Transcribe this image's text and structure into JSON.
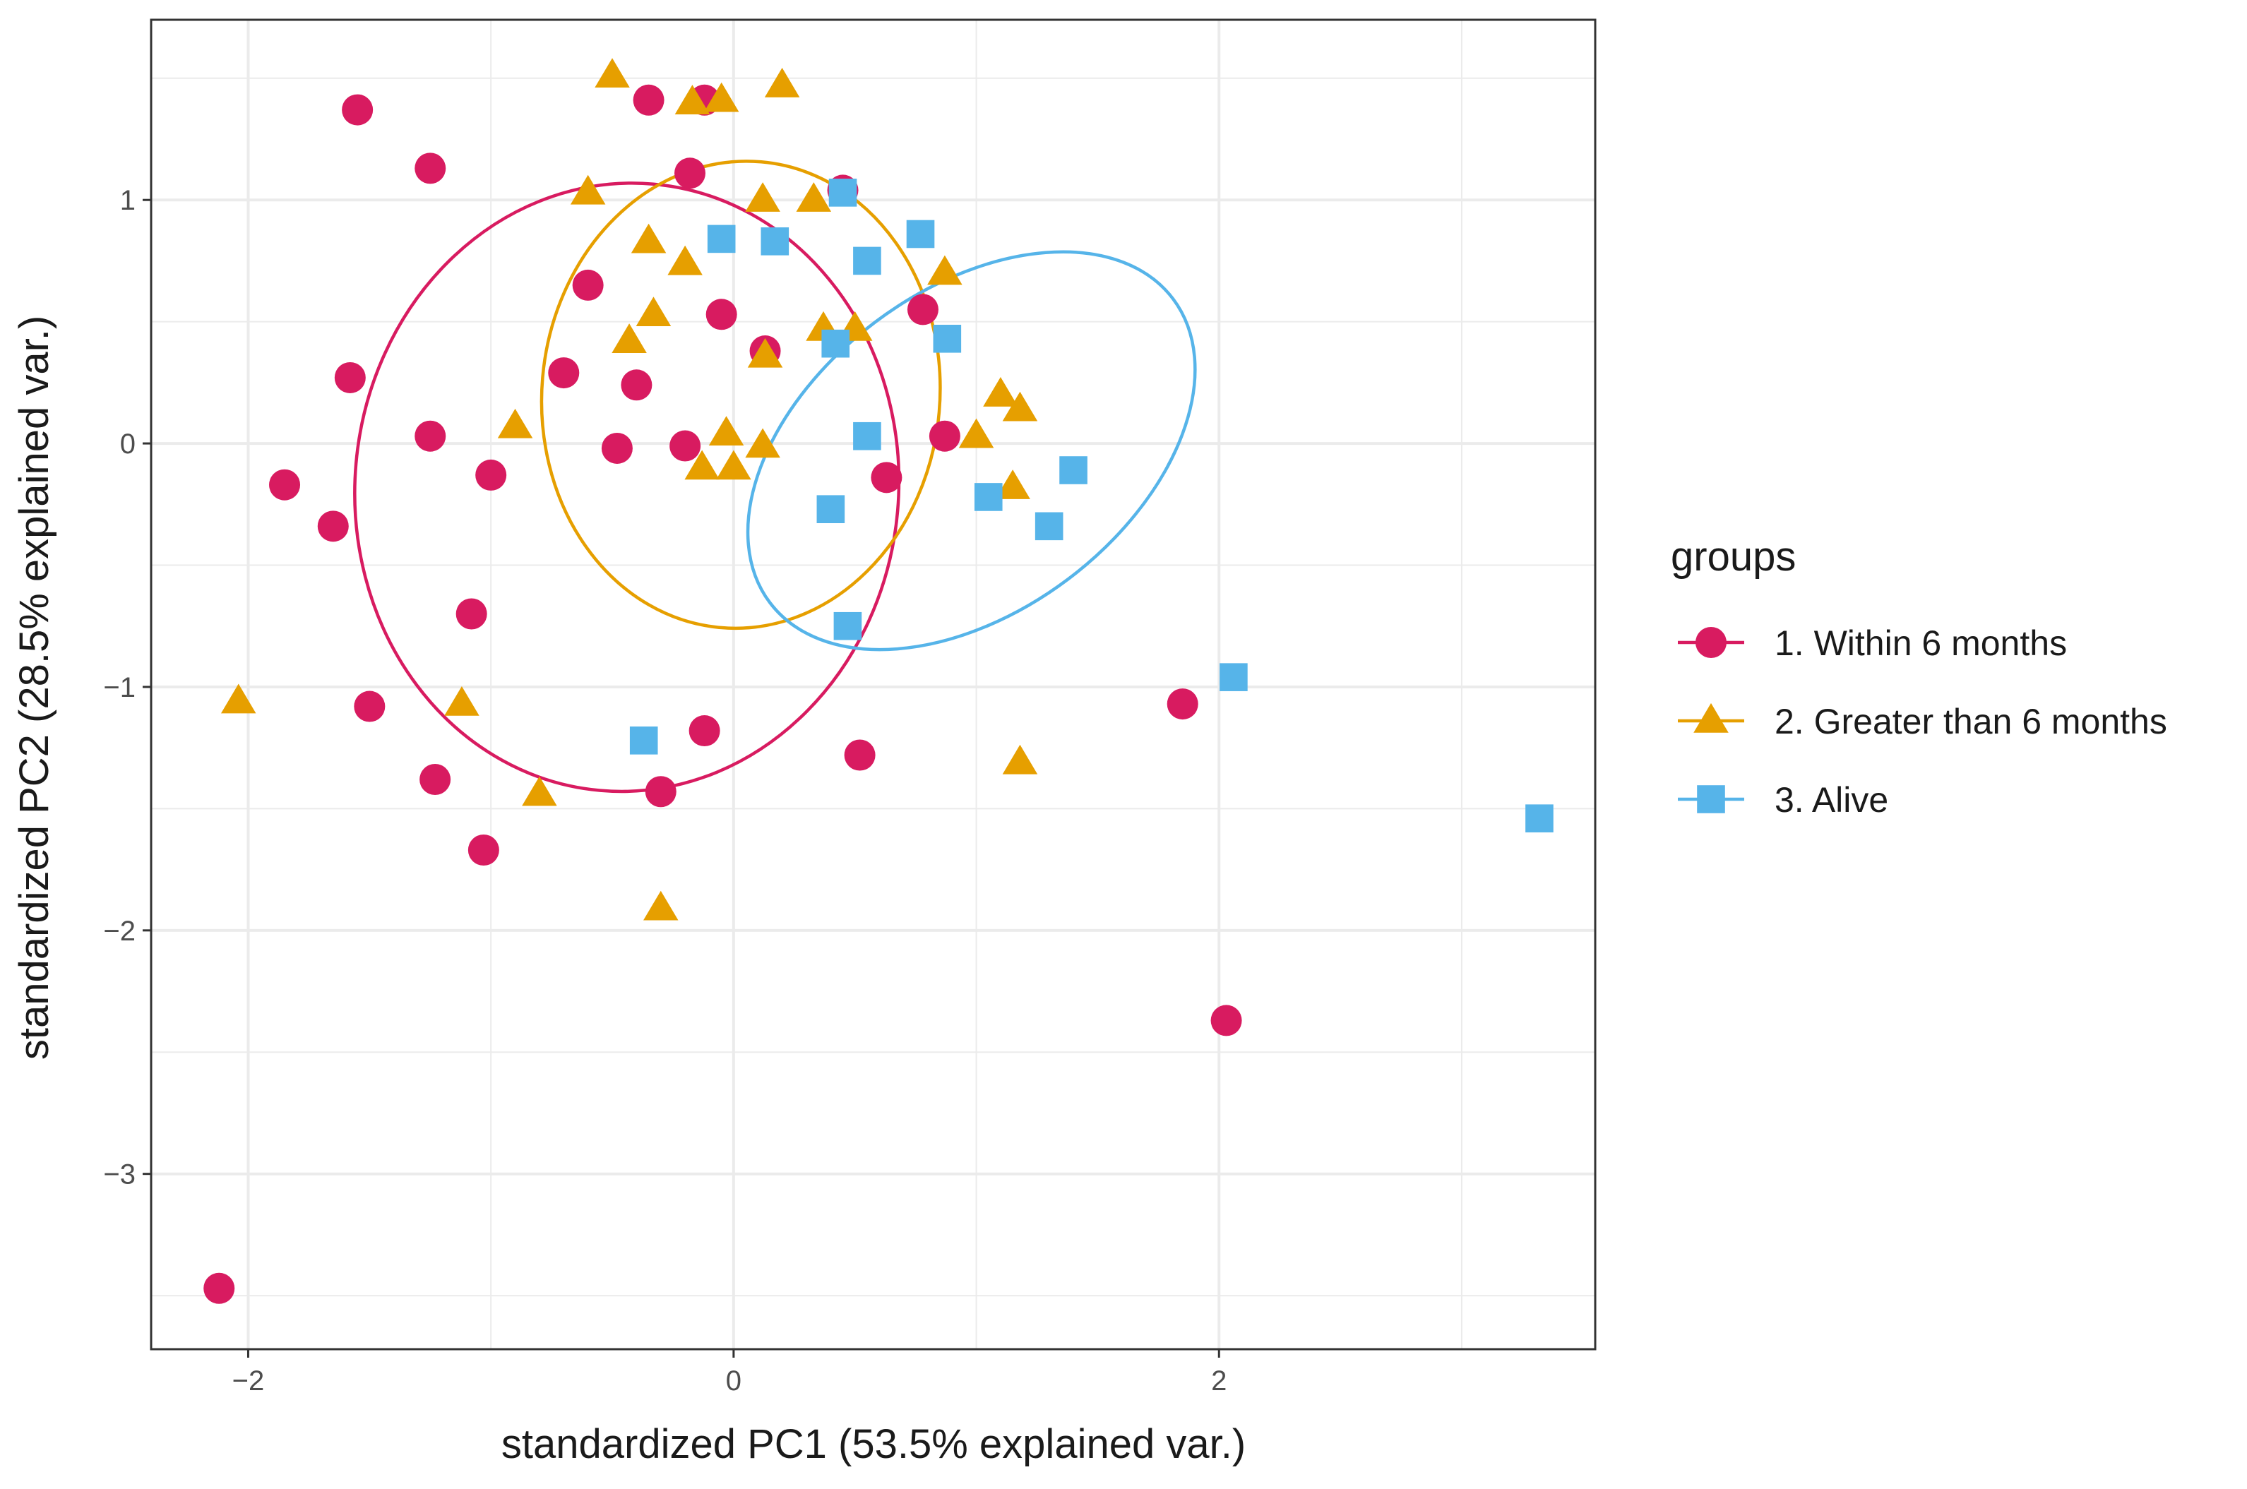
{
  "chart_data": {
    "type": "scatter",
    "title": "",
    "xlabel": "standardized PC1 (53.5% explained var.)",
    "ylabel": "standardized PC2 (28.5% explained var.)",
    "xlim": [
      -2.4,
      3.55
    ],
    "ylim": [
      -3.72,
      1.74
    ],
    "x_ticks": [
      -2,
      0,
      2
    ],
    "x_tick_labels": [
      "−2",
      "0",
      "2"
    ],
    "y_ticks": [
      -3,
      -2,
      -1,
      0,
      1
    ],
    "y_tick_labels": [
      "−3",
      "−2",
      "−1",
      "0",
      "1"
    ],
    "grid": true,
    "legend": {
      "title": "groups",
      "position": "right"
    },
    "series": [
      {
        "name": "1. Within 6 months",
        "marker": "circle",
        "color": "#D81B60",
        "x": [
          -1.55,
          -1.25,
          -0.35,
          -0.12,
          -0.18,
          0.45,
          -0.6,
          -0.05,
          0.78,
          0.13,
          -1.58,
          -0.7,
          -0.4,
          -1.25,
          -1.0,
          -0.48,
          -0.2,
          0.63,
          0.87,
          -1.85,
          -1.65,
          -1.08,
          -1.5,
          -0.12,
          0.52,
          -1.23,
          -0.3,
          -1.03,
          1.85,
          2.03,
          -2.12
        ],
        "y": [
          1.37,
          1.13,
          1.41,
          1.41,
          1.11,
          1.04,
          0.65,
          0.53,
          0.55,
          0.38,
          0.27,
          0.29,
          0.24,
          0.03,
          -0.13,
          -0.02,
          -0.01,
          -0.14,
          0.03,
          -0.17,
          -0.34,
          -0.7,
          -1.08,
          -1.18,
          -1.28,
          -1.38,
          -1.43,
          -1.67,
          -1.07,
          -2.37,
          -3.47
        ]
      },
      {
        "name": "2. Greater than 6 months",
        "marker": "triangle",
        "color": "#E69F00",
        "x": [
          -0.5,
          0.2,
          -0.17,
          -0.05,
          -0.6,
          0.12,
          0.33,
          -0.35,
          -0.2,
          0.87,
          -0.33,
          -0.43,
          0.37,
          0.5,
          0.13,
          -0.9,
          -0.03,
          0.12,
          1.0,
          1.1,
          1.18,
          -0.13,
          0.0,
          1.15,
          -2.04,
          -1.12,
          -0.8,
          1.18,
          -0.3
        ],
        "y": [
          1.51,
          1.47,
          1.4,
          1.41,
          1.03,
          1.0,
          1.0,
          0.83,
          0.74,
          0.7,
          0.53,
          0.42,
          0.47,
          0.47,
          0.36,
          0.07,
          0.04,
          -0.01,
          0.03,
          0.2,
          0.14,
          -0.1,
          -0.1,
          -0.18,
          -1.06,
          -1.07,
          -1.44,
          -1.31,
          -1.91
        ]
      },
      {
        "name": "3. Alive",
        "marker": "square",
        "color": "#56B4E9",
        "x": [
          0.45,
          -0.05,
          0.17,
          0.77,
          0.55,
          0.42,
          0.88,
          0.55,
          0.4,
          1.05,
          1.4,
          1.3,
          0.47,
          -0.37,
          2.06,
          3.32
        ],
        "y": [
          1.03,
          0.84,
          0.83,
          0.86,
          0.75,
          0.41,
          0.43,
          0.03,
          -0.27,
          -0.22,
          -0.11,
          -0.34,
          -0.75,
          -1.22,
          -0.96,
          -1.54
        ]
      }
    ],
    "ellipses": [
      {
        "group": "1. Within 6 months",
        "center": [
          -0.44,
          -0.18
        ],
        "semi_axes": [
          1.12,
          1.25
        ],
        "rotation_deg": 5
      },
      {
        "group": "2. Greater than 6 months",
        "center": [
          0.03,
          0.2
        ],
        "semi_axes": [
          0.82,
          0.96
        ],
        "rotation_deg": 5
      },
      {
        "group": "3. Alive",
        "center": [
          0.98,
          -0.03
        ],
        "semi_axes": [
          1.04,
          0.66
        ],
        "rotation_deg": -37
      }
    ]
  }
}
